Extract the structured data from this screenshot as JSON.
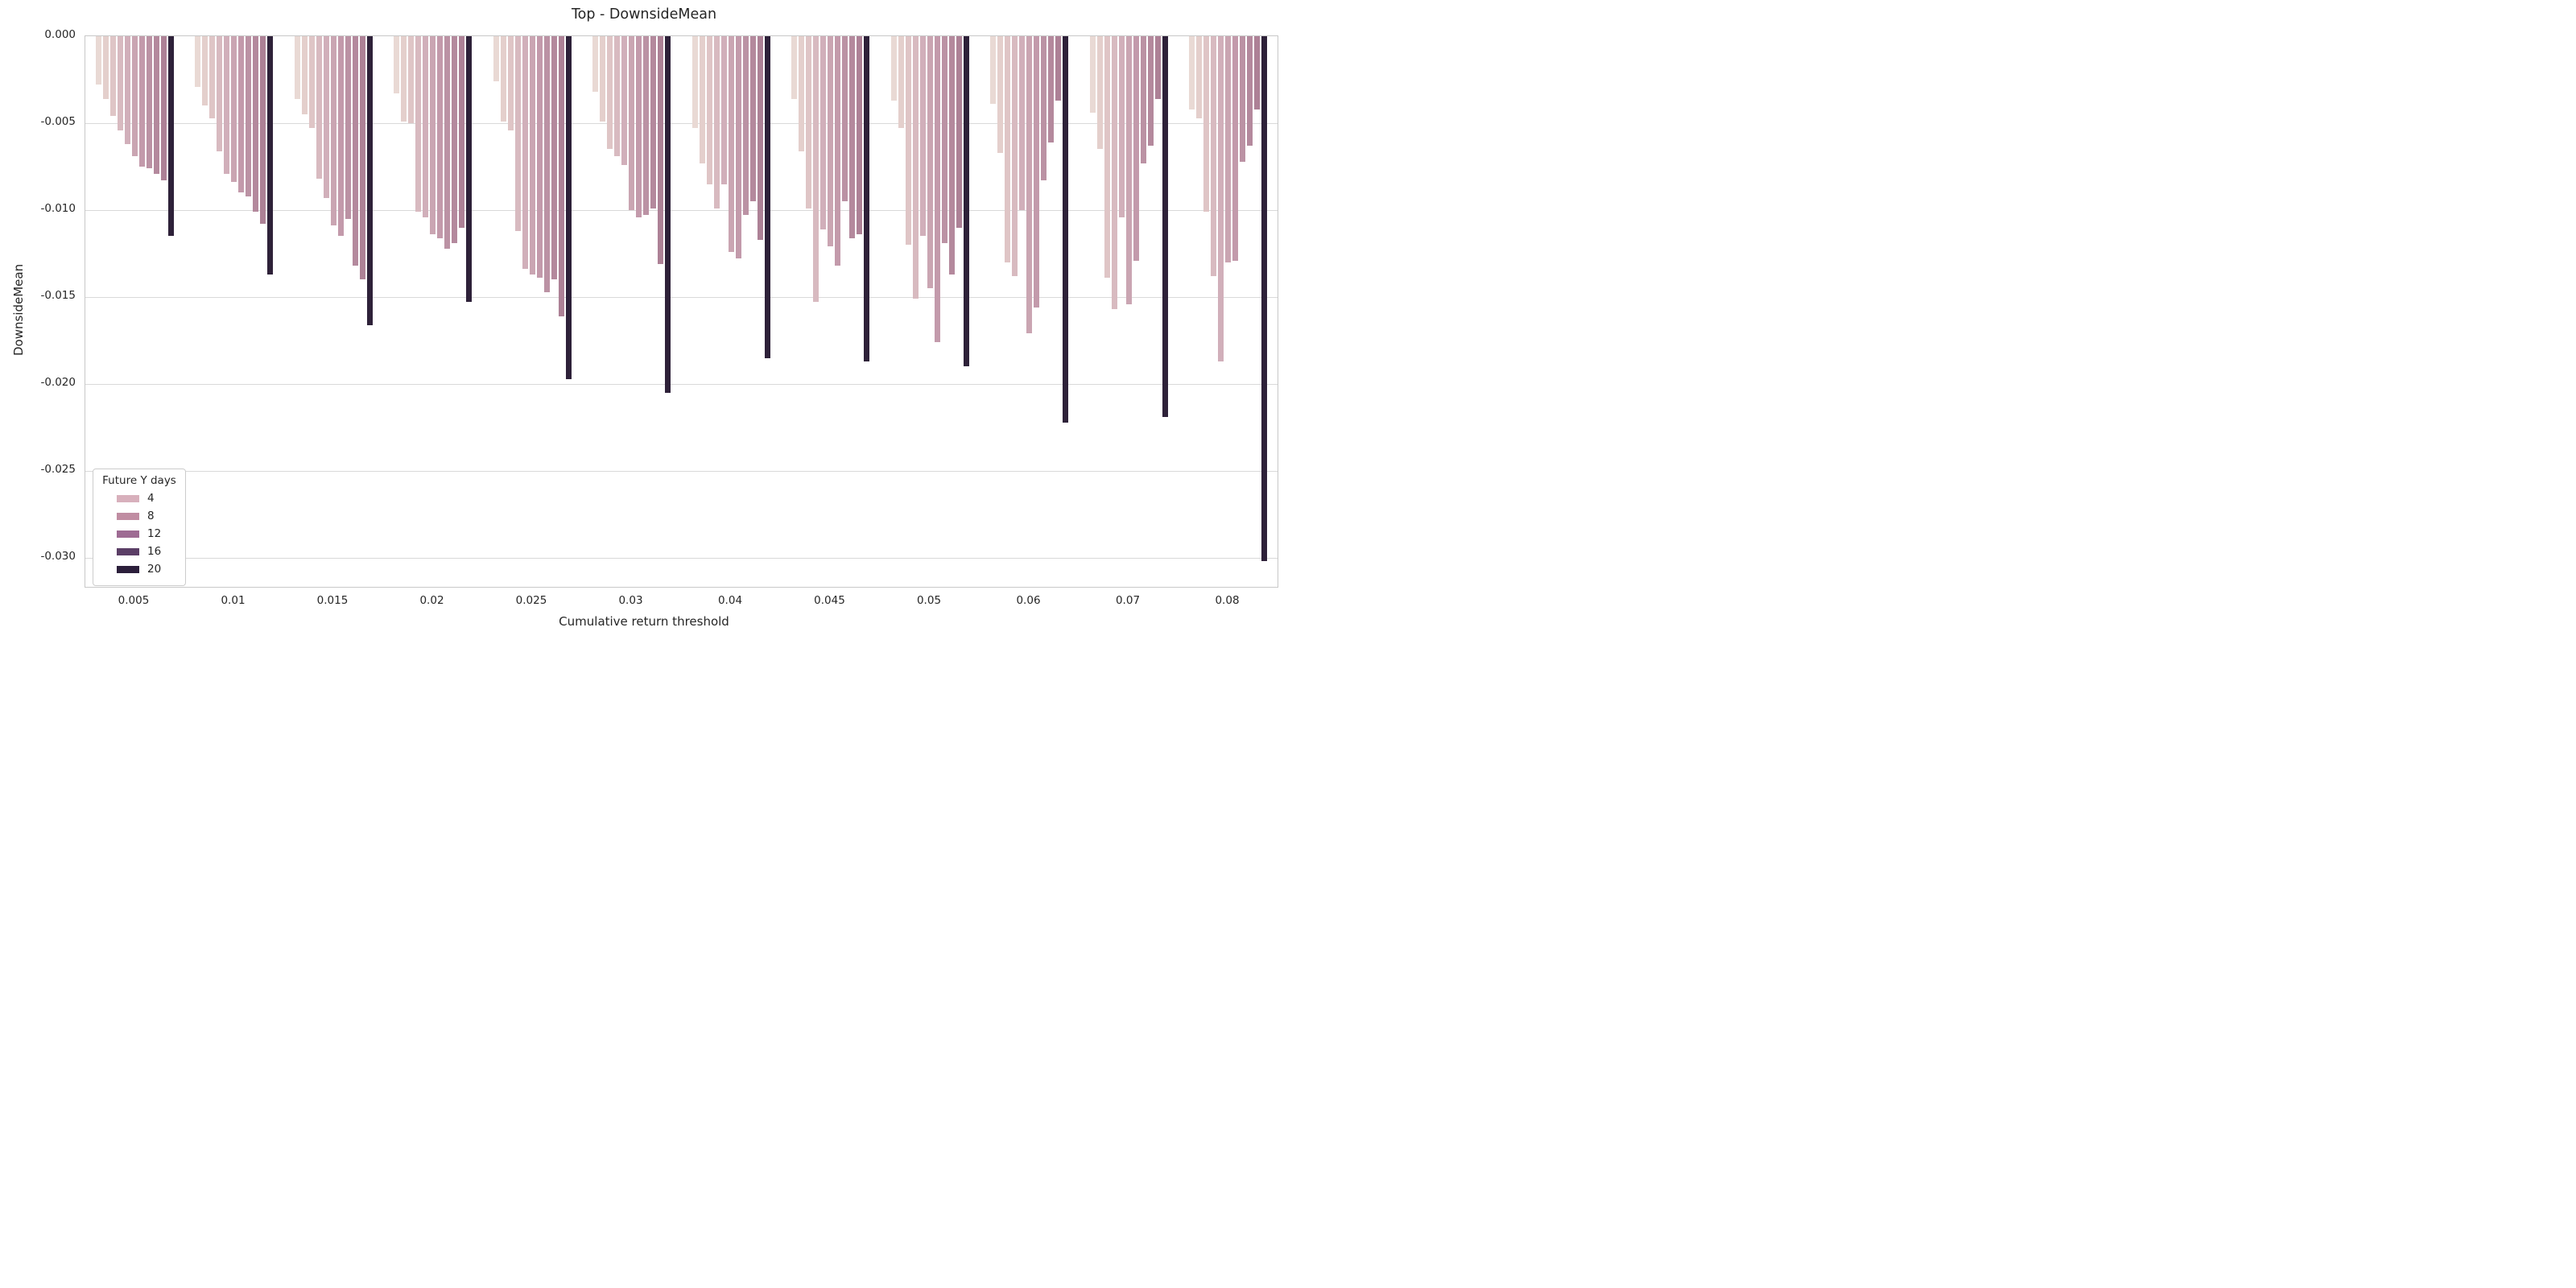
{
  "colors": {
    "background": "#ffffff",
    "grid": "#d9d9d9",
    "border": "#c8c8c8",
    "text": "#262626"
  },
  "chart_data": {
    "type": "bar",
    "title": "Top - DownsideMean",
    "xlabel": "Cumulative return threshold",
    "ylabel": "DownsideMean",
    "orientation": "vertical-negative",
    "grid": "horizontal",
    "ylim": [
      -0.0318,
      0.0
    ],
    "yticks": [
      "0.000",
      "-0.005",
      "-0.010",
      "-0.015",
      "-0.020",
      "-0.025",
      "-0.030"
    ],
    "ytick_values": [
      0.0,
      -0.005,
      -0.01,
      -0.015,
      -0.02,
      -0.025,
      -0.03
    ],
    "categories": [
      "0.005",
      "0.01",
      "0.015",
      "0.02",
      "0.025",
      "0.03",
      "0.04",
      "0.045",
      "0.05",
      "0.06",
      "0.07",
      "0.08"
    ],
    "bars_per_group": 11,
    "palette": [
      "#e9d9d4",
      "#e4cfcc",
      "#dfc5c6",
      "#d8bac0",
      "#d1afba",
      "#caa5b2",
      "#c39aab",
      "#bb92a4",
      "#b4899d",
      "#ad8196",
      "#2e2139"
    ],
    "groups": [
      {
        "category": "0.005",
        "values": [
          -0.0028,
          -0.0036,
          -0.0046,
          -0.0054,
          -0.0062,
          -0.0069,
          -0.0075,
          -0.0076,
          -0.0079,
          -0.0083,
          -0.0115
        ]
      },
      {
        "category": "0.01",
        "values": [
          -0.0029,
          -0.004,
          -0.0047,
          -0.0066,
          -0.0079,
          -0.0084,
          -0.009,
          -0.0092,
          -0.0101,
          -0.0108,
          -0.0137
        ]
      },
      {
        "category": "0.015",
        "values": [
          -0.0036,
          -0.0045,
          -0.0053,
          -0.0082,
          -0.0093,
          -0.0109,
          -0.0115,
          -0.0105,
          -0.0132,
          -0.014,
          -0.0166
        ]
      },
      {
        "category": "0.02",
        "values": [
          -0.0033,
          -0.0049,
          -0.005,
          -0.0101,
          -0.0104,
          -0.0114,
          -0.0116,
          -0.0122,
          -0.0119,
          -0.011,
          -0.0153
        ]
      },
      {
        "category": "0.025",
        "values": [
          -0.0026,
          -0.0049,
          -0.0054,
          -0.0112,
          -0.0134,
          -0.0137,
          -0.0139,
          -0.0147,
          -0.014,
          -0.0161,
          -0.0197
        ]
      },
      {
        "category": "0.03",
        "values": [
          -0.0032,
          -0.0049,
          -0.0065,
          -0.0069,
          -0.0074,
          -0.01,
          -0.0104,
          -0.0103,
          -0.0099,
          -0.0131,
          -0.0205
        ]
      },
      {
        "category": "0.04",
        "values": [
          -0.0053,
          -0.0073,
          -0.0085,
          -0.0099,
          -0.0085,
          -0.0124,
          -0.0128,
          -0.0103,
          -0.0095,
          -0.0117,
          -0.0185
        ]
      },
      {
        "category": "0.045",
        "values": [
          -0.0036,
          -0.0066,
          -0.0099,
          -0.0153,
          -0.0111,
          -0.0121,
          -0.0132,
          -0.0095,
          -0.0116,
          -0.0114,
          -0.0187
        ]
      },
      {
        "category": "0.05",
        "values": [
          -0.0037,
          -0.0053,
          -0.012,
          -0.0151,
          -0.0115,
          -0.0145,
          -0.0176,
          -0.0119,
          -0.0137,
          -0.011,
          -0.019
        ]
      },
      {
        "category": "0.06",
        "values": [
          -0.0039,
          -0.0067,
          -0.013,
          -0.0138,
          -0.01,
          -0.0171,
          -0.0156,
          -0.0083,
          -0.0061,
          -0.0037,
          -0.0222
        ]
      },
      {
        "category": "0.07",
        "values": [
          -0.0044,
          -0.0065,
          -0.0139,
          -0.0157,
          -0.0104,
          -0.0154,
          -0.0129,
          -0.0073,
          -0.0063,
          -0.0036,
          -0.0219
        ]
      },
      {
        "category": "0.08",
        "values": [
          -0.0042,
          -0.0047,
          -0.0101,
          -0.0138,
          -0.0187,
          -0.013,
          -0.0129,
          -0.0072,
          -0.0063,
          -0.0042,
          -0.0302
        ]
      }
    ],
    "legend": {
      "title": "Future Y days",
      "position": "lower left",
      "entries": [
        {
          "label": "4",
          "color": "#d8b0bc"
        },
        {
          "label": "8",
          "color": "#c08da2"
        },
        {
          "label": "12",
          "color": "#9e6b93"
        },
        {
          "label": "16",
          "color": "#5b3e66"
        },
        {
          "label": "20",
          "color": "#2c1f3b"
        }
      ]
    }
  }
}
